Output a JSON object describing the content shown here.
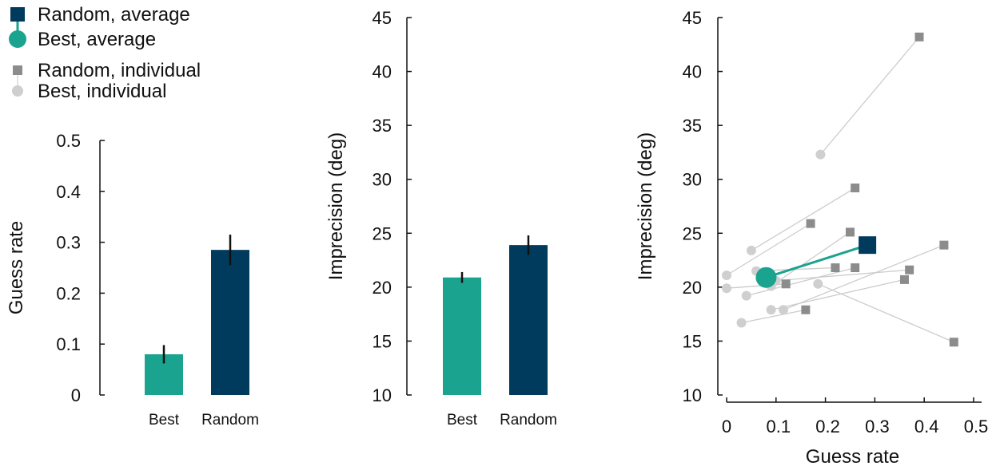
{
  "colors": {
    "best": "#1aa38f",
    "random": "#003a5c",
    "random_individual": "#8c8c8c",
    "best_individual": "#cfcfcf",
    "axis": "#111111"
  },
  "legend": {
    "placement": "top-left",
    "items": [
      {
        "label": "Random, average",
        "marker": "square",
        "color": "#003a5c"
      },
      {
        "label": "Best, average",
        "marker": "circle",
        "color": "#1aa38f"
      },
      {
        "label": "Random, individual",
        "marker": "square",
        "color": "#8c8c8c"
      },
      {
        "label": "Best, individual",
        "marker": "circle",
        "color": "#cfcfcf"
      }
    ]
  },
  "chart_data": [
    {
      "type": "bar",
      "title": "",
      "categories": [
        "Best",
        "Random"
      ],
      "values": [
        0.08,
        0.285
      ],
      "errors": [
        0.018,
        0.03
      ],
      "colors": [
        "#1aa38f",
        "#003a5c"
      ],
      "xlabel": "",
      "ylabel": "Guess rate",
      "ylim": [
        0,
        0.5
      ],
      "yticks": [
        0,
        0.1,
        0.2,
        0.3,
        0.4,
        0.5
      ],
      "ytick_labels": [
        "0",
        "0.1",
        "0.2",
        "0.3",
        "0.4",
        "0.5"
      ],
      "grid": false
    },
    {
      "type": "bar",
      "title": "",
      "categories": [
        "Best",
        "Random"
      ],
      "values": [
        20.9,
        23.9
      ],
      "errors": [
        0.5,
        0.9
      ],
      "colors": [
        "#1aa38f",
        "#003a5c"
      ],
      "xlabel": "",
      "ylabel": "Imprecision (deg)",
      "ylim": [
        10,
        45
      ],
      "yticks": [
        10,
        15,
        20,
        25,
        30,
        35,
        40,
        45
      ],
      "ytick_labels": [
        "10",
        "15",
        "20",
        "25",
        "30",
        "35",
        "40",
        "45"
      ],
      "grid": false
    },
    {
      "type": "scatter",
      "title": "",
      "xlabel": "Guess rate",
      "ylabel": "Imprecision (deg)",
      "xlim": [
        0,
        0.5
      ],
      "ylim": [
        10,
        45
      ],
      "xticks": [
        0,
        0.1,
        0.2,
        0.3,
        0.4,
        0.5
      ],
      "xtick_labels": [
        "0",
        "0.1",
        "0.2",
        "0.3",
        "0.4",
        "0.5"
      ],
      "yticks": [
        10,
        15,
        20,
        25,
        30,
        35,
        40,
        45
      ],
      "ytick_labels": [
        "10",
        "15",
        "20",
        "25",
        "30",
        "35",
        "40",
        "45"
      ],
      "grid": false,
      "individuals": [
        {
          "best": [
            0.19,
            32.3
          ],
          "random": [
            0.39,
            43.2
          ]
        },
        {
          "best": [
            0.05,
            23.4
          ],
          "random": [
            0.26,
            29.2
          ]
        },
        {
          "best": [
            0.0,
            21.1
          ],
          "random": [
            0.17,
            25.9
          ]
        },
        {
          "best": [
            0.09,
            20.1
          ],
          "random": [
            0.25,
            25.1
          ]
        },
        {
          "best": [
            0.06,
            21.5
          ],
          "random": [
            0.22,
            21.8
          ]
        },
        {
          "best": [
            0.1,
            20.6
          ],
          "random": [
            0.37,
            21.6
          ]
        },
        {
          "best": [
            0.0,
            19.9
          ],
          "random": [
            0.12,
            20.3
          ]
        },
        {
          "best": [
            0.04,
            19.2
          ],
          "random": [
            0.26,
            21.8
          ]
        },
        {
          "best": [
            0.115,
            17.9
          ],
          "random": [
            0.44,
            23.9
          ]
        },
        {
          "best": [
            0.09,
            17.9
          ],
          "random": [
            0.36,
            20.7
          ]
        },
        {
          "best": [
            0.03,
            16.7
          ],
          "random": [
            0.16,
            17.9
          ]
        },
        {
          "best": [
            0.185,
            20.3
          ],
          "random": [
            0.46,
            14.9
          ]
        }
      ],
      "average": {
        "best": [
          0.08,
          20.9
        ],
        "random": [
          0.285,
          23.9
        ]
      }
    }
  ]
}
